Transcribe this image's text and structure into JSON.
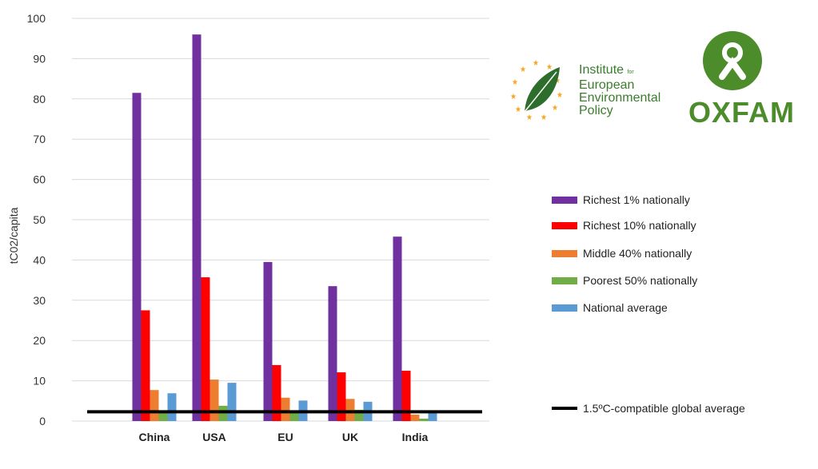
{
  "chart_data": {
    "type": "bar",
    "title": "",
    "xlabel": "",
    "ylabel": "tC02/capita",
    "ylim": [
      0,
      100
    ],
    "yticks": [
      0,
      10,
      20,
      30,
      40,
      50,
      60,
      70,
      80,
      90,
      100
    ],
    "grid": true,
    "legend_position": "right",
    "categories": [
      "China",
      "USA",
      "EU",
      "UK",
      "India"
    ],
    "series": [
      {
        "name": "Richest 1% nationally",
        "color": "#7030a0",
        "values": [
          81.5,
          96,
          39.5,
          33.5,
          45.8
        ]
      },
      {
        "name": "Richest 10% nationally",
        "color": "#ff0000",
        "values": [
          27.5,
          35.7,
          13.9,
          12.1,
          12.5
        ]
      },
      {
        "name": "Middle 40% nationally",
        "color": "#ed7d31",
        "values": [
          7.7,
          10.3,
          5.8,
          5.5,
          1.6
        ]
      },
      {
        "name": "Poorest 50% nationally",
        "color": "#70ad47",
        "values": [
          2.3,
          3.8,
          2.3,
          2.8,
          0.6
        ]
      },
      {
        "name": "National average",
        "color": "#5b9bd5",
        "values": [
          6.9,
          9.5,
          5.1,
          4.8,
          2.0
        ]
      }
    ],
    "reference_line": {
      "name": "1.5ºC-compatible global average",
      "value": 2.3,
      "color": "#000000"
    }
  },
  "logos": {
    "ieep": [
      "Institute",
      "for",
      "European",
      "Environmental",
      "Policy"
    ],
    "oxfam": "OXFAM"
  }
}
